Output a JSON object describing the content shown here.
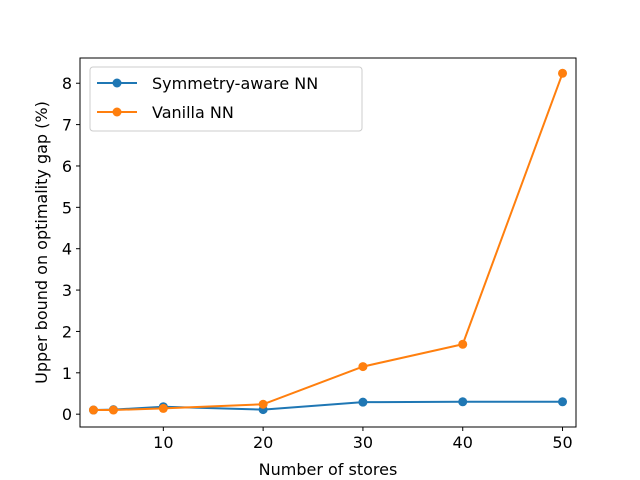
{
  "chart_data": {
    "type": "line",
    "xlabel": "Number of stores",
    "ylabel": "Upper bound on optimality gap (%)",
    "xlim": [
      1.65,
      51.35
    ],
    "ylim": [
      -0.31,
      8.61
    ],
    "xticks": [
      10,
      20,
      30,
      40,
      50
    ],
    "yticks": [
      0,
      1,
      2,
      3,
      4,
      5,
      6,
      7,
      8
    ],
    "grid": false,
    "legend_position": "top-left",
    "series": [
      {
        "name": "Symmetry-aware NN",
        "color": "#1f77b4",
        "x": [
          3,
          5,
          10,
          20,
          30,
          40,
          50
        ],
        "y": [
          0.1,
          0.11,
          0.18,
          0.11,
          0.29,
          0.3,
          0.3
        ]
      },
      {
        "name": "Vanilla NN",
        "color": "#ff7f0e",
        "x": [
          3,
          5,
          10,
          20,
          30,
          40,
          50
        ],
        "y": [
          0.1,
          0.1,
          0.14,
          0.24,
          1.15,
          1.69,
          8.24
        ]
      }
    ]
  }
}
